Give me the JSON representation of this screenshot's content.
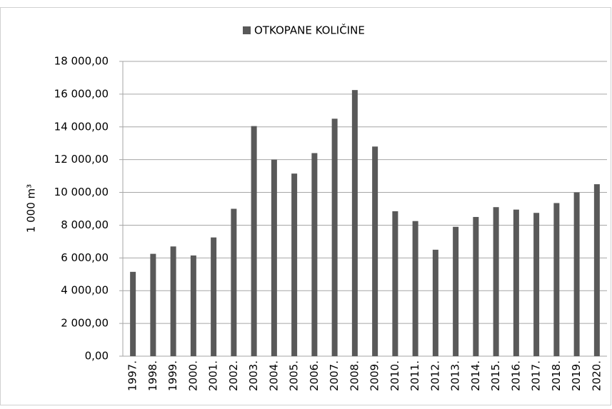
{
  "chart_data": {
    "type": "bar",
    "legend": "OTKOPANE KOLIČINE",
    "y_label": "1 000 m³",
    "categories": [
      "1997.",
      "1998.",
      "1999.",
      "2000.",
      "2001.",
      "2002.",
      "2003.",
      "2004.",
      "2005.",
      "2006.",
      "2007.",
      "2008.",
      "2009.",
      "2010.",
      "2011.",
      "2012.",
      "2013.",
      "2014.",
      "2015.",
      "2016.",
      "2017.",
      "2018.",
      "2019.",
      "2020."
    ],
    "values": [
      5150,
      6250,
      6700,
      6150,
      7250,
      9000,
      14050,
      12000,
      11150,
      12400,
      14500,
      16250,
      12800,
      8850,
      8250,
      6500,
      7900,
      8500,
      9100,
      8950,
      8750,
      9350,
      10000,
      10500
    ],
    "color": "#595959",
    "ylim": [
      0,
      18000
    ],
    "yticks": [
      {
        "value": 0,
        "label": "0,00"
      },
      {
        "value": 2000,
        "label": "2 000,00"
      },
      {
        "value": 4000,
        "label": "4 000,00"
      },
      {
        "value": 6000,
        "label": "6 000,00"
      },
      {
        "value": 8000,
        "label": "8 000,00"
      },
      {
        "value": 10000,
        "label": "10 000,00"
      },
      {
        "value": 12000,
        "label": "12 000,00"
      },
      {
        "value": 14000,
        "label": "14 000,00"
      },
      {
        "value": 16000,
        "label": "16 000,00"
      },
      {
        "value": 18000,
        "label": "18 000,00"
      }
    ],
    "grid": true
  }
}
